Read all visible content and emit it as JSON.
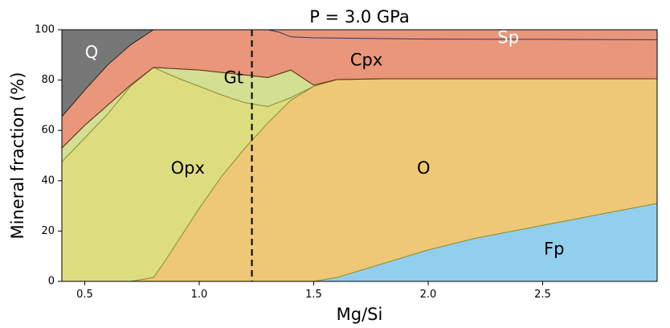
{
  "chart_data": {
    "type": "area",
    "title": "P = 3.0 GPa",
    "xlabel": "Mg/Si",
    "ylabel": "Mineral fraction (%)",
    "xlim": [
      0.4,
      3.0
    ],
    "ylim": [
      0,
      100
    ],
    "xticks": [
      0.5,
      1.0,
      1.5,
      2.0,
      2.5
    ],
    "yticks": [
      0,
      20,
      40,
      60,
      80,
      100
    ],
    "grid": false,
    "marker_line": {
      "x": 1.23,
      "style": "dashed"
    },
    "phases": [
      {
        "name": "Fp",
        "color": "#92cfee",
        "label": {
          "text": "Fp",
          "x": 2.55,
          "y": 13,
          "color": "#000000"
        },
        "upper": [
          [
            0.4,
            0
          ],
          [
            1.5,
            0
          ],
          [
            1.6,
            1.5
          ],
          [
            1.8,
            7
          ],
          [
            2.0,
            12.5
          ],
          [
            2.2,
            17
          ],
          [
            2.4,
            20.5
          ],
          [
            2.6,
            24
          ],
          [
            2.8,
            27.5
          ],
          [
            3.0,
            31
          ]
        ]
      },
      {
        "name": "O",
        "color": "#eec876",
        "label": {
          "text": "O",
          "x": 1.98,
          "y": 45,
          "color": "#000000"
        },
        "upper": [
          [
            0.4,
            0
          ],
          [
            0.7,
            0
          ],
          [
            0.8,
            1.5
          ],
          [
            0.85,
            8
          ],
          [
            1.0,
            29
          ],
          [
            1.1,
            42
          ],
          [
            1.2,
            53
          ],
          [
            1.3,
            63
          ],
          [
            1.4,
            72
          ],
          [
            1.5,
            77.5
          ],
          [
            1.6,
            80.2
          ],
          [
            1.8,
            80.5
          ],
          [
            2.0,
            80.5
          ],
          [
            2.5,
            80.5
          ],
          [
            2.8,
            80.5
          ],
          [
            3.0,
            80.5
          ]
        ]
      },
      {
        "name": "Opx",
        "color": "#dddd80",
        "label": {
          "text": "Opx",
          "x": 0.95,
          "y": 45,
          "color": "#000000"
        },
        "upper": [
          [
            0.4,
            47.5
          ],
          [
            0.5,
            57
          ],
          [
            0.6,
            66.5
          ],
          [
            0.7,
            77.5
          ],
          [
            0.8,
            85
          ],
          [
            0.9,
            81
          ],
          [
            1.0,
            77.5
          ],
          [
            1.1,
            74
          ],
          [
            1.2,
            71
          ],
          [
            1.3,
            69.5
          ],
          [
            1.4,
            73
          ],
          [
            1.5,
            77.5
          ],
          [
            1.6,
            80.2
          ],
          [
            1.8,
            80.5
          ],
          [
            2.0,
            80.5
          ],
          [
            2.5,
            80.5
          ],
          [
            2.8,
            80.5
          ],
          [
            3.0,
            80.5
          ]
        ]
      },
      {
        "name": "Gt",
        "color": "#d3df92",
        "label": {
          "text": "Gt",
          "x": 1.15,
          "y": 81,
          "color": "#000000"
        },
        "upper": [
          [
            0.4,
            53
          ],
          [
            0.5,
            62
          ],
          [
            0.6,
            70
          ],
          [
            0.7,
            78
          ],
          [
            0.8,
            85
          ],
          [
            1.0,
            84
          ],
          [
            1.2,
            82
          ],
          [
            1.3,
            81
          ],
          [
            1.4,
            84
          ],
          [
            1.5,
            78
          ],
          [
            1.6,
            80.2
          ],
          [
            1.8,
            80.5
          ],
          [
            2.0,
            80.5
          ],
          [
            2.5,
            80.5
          ],
          [
            2.8,
            80.5
          ],
          [
            3.0,
            80.5
          ]
        ]
      },
      {
        "name": "Cpx",
        "color": "#e9967a",
        "label": {
          "text": "Cpx",
          "x": 1.73,
          "y": 88,
          "color": "#000000"
        },
        "upper": [
          [
            0.4,
            65.5
          ],
          [
            0.5,
            76
          ],
          [
            0.6,
            86
          ],
          [
            0.7,
            94
          ],
          [
            0.8,
            100
          ],
          [
            1.0,
            100
          ],
          [
            1.2,
            100
          ],
          [
            1.3,
            100
          ],
          [
            1.4,
            100
          ],
          [
            1.5,
            100
          ],
          [
            1.6,
            100
          ],
          [
            1.8,
            100
          ],
          [
            2.0,
            100
          ],
          [
            2.5,
            100
          ],
          [
            2.8,
            100
          ],
          [
            3.0,
            100
          ]
        ]
      },
      {
        "name": "Sp",
        "color": "#8d84d8",
        "label": {
          "text": "Sp",
          "x": 2.35,
          "y": 97,
          "color": "#ffffff"
        },
        "upper": [
          [
            1.3,
            100
          ],
          [
            3.0,
            100
          ]
        ],
        "lower": [
          [
            1.3,
            100
          ],
          [
            1.35,
            99
          ],
          [
            1.4,
            97.2
          ],
          [
            1.5,
            96.8
          ],
          [
            1.8,
            96.5
          ],
          [
            2.0,
            96.3
          ],
          [
            2.5,
            96.2
          ],
          [
            3.0,
            96
          ]
        ]
      },
      {
        "name": "Q",
        "color": "#777777",
        "label": {
          "text": "Q",
          "x": 0.53,
          "y": 91,
          "color": "#ffffff"
        },
        "upper": [
          [
            0.4,
            100
          ],
          [
            0.8,
            100
          ]
        ],
        "lower": [
          [
            0.4,
            65.5
          ],
          [
            0.5,
            76
          ],
          [
            0.6,
            86
          ],
          [
            0.7,
            94
          ],
          [
            0.8,
            100
          ]
        ]
      }
    ]
  }
}
